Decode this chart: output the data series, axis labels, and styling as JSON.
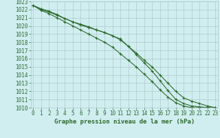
{
  "x": [
    0,
    1,
    2,
    3,
    4,
    5,
    6,
    7,
    8,
    9,
    10,
    11,
    12,
    13,
    14,
    15,
    16,
    17,
    18,
    19,
    20,
    21,
    22,
    23
  ],
  "line_high": [
    1022.5,
    1022.1,
    1021.8,
    1021.4,
    1020.9,
    1020.5,
    1020.1,
    1019.8,
    1019.5,
    1019.2,
    1018.8,
    1018.4,
    1017.5,
    1016.7,
    1015.8,
    1015.0,
    1014.0,
    1013.0,
    1012.0,
    1011.2,
    1010.8,
    1010.5,
    1010.2,
    1010.0
  ],
  "line_mid": [
    1022.5,
    1021.9,
    1021.5,
    1021.0,
    1020.5,
    1020.0,
    1019.5,
    1019.0,
    1018.5,
    1018.0,
    1017.4,
    1016.6,
    1015.8,
    1015.0,
    1014.1,
    1013.2,
    1012.2,
    1011.3,
    1010.6,
    1010.2,
    1010.0,
    1010.0,
    1010.0,
    1010.0
  ],
  "line_low": [
    1022.5,
    1022.0,
    1021.7,
    1021.3,
    1020.9,
    1020.5,
    1020.2,
    1019.9,
    1019.5,
    1019.2,
    1018.8,
    1018.3,
    1017.5,
    1016.5,
    1015.5,
    1014.5,
    1013.3,
    1012.1,
    1011.0,
    1010.5,
    1010.2,
    1010.1,
    1010.0,
    1010.0
  ],
  "line_color": "#2d6a2d",
  "background_color": "#d0eef0",
  "grid_color": "#b0c8c8",
  "xlabel": "Graphe pression niveau de la mer (hPa)",
  "ylim": [
    1010,
    1023
  ],
  "xlim": [
    0,
    23
  ],
  "yticks": [
    1010,
    1011,
    1012,
    1013,
    1014,
    1015,
    1016,
    1017,
    1018,
    1019,
    1020,
    1021,
    1022,
    1023
  ],
  "xticks": [
    0,
    1,
    2,
    3,
    4,
    5,
    6,
    7,
    8,
    9,
    10,
    11,
    12,
    13,
    14,
    15,
    16,
    17,
    18,
    19,
    20,
    21,
    22,
    23
  ],
  "tick_fontsize": 5.5,
  "xlabel_fontsize": 6.5,
  "marker_size": 3.5,
  "line_width": 0.8
}
